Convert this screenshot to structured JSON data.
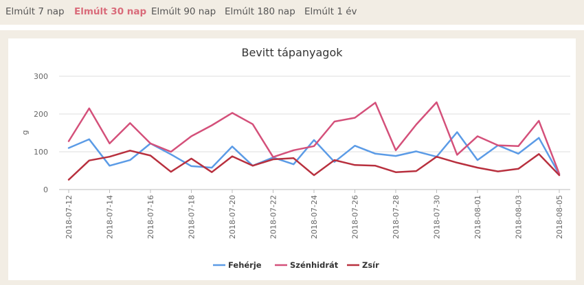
{
  "tabs": [
    {
      "label": "Elmúlt 7 nap",
      "active": false
    },
    {
      "label": "Elmúlt 30 nap",
      "active": true
    },
    {
      "label": "Elmúlt 90 nap",
      "active": false
    },
    {
      "label": "Elmúlt 180 nap",
      "active": false
    },
    {
      "label": "Elmúlt 1 év",
      "active": false
    }
  ],
  "colors": {
    "accent": "#d96b7a",
    "background": "#f2ede4"
  },
  "chart_data": {
    "type": "line",
    "title": "Bevitt tápanyagok",
    "ylabel": "g",
    "xlabel": "",
    "ylim": [
      0,
      300
    ],
    "yticks": [
      0,
      100,
      200,
      300
    ],
    "grid": true,
    "legend": "bottom",
    "x": [
      "2018-07-12",
      "2018-07-13",
      "2018-07-14",
      "2018-07-15",
      "2018-07-16",
      "2018-07-17",
      "2018-07-18",
      "2018-07-19",
      "2018-07-20",
      "2018-07-21",
      "2018-07-22",
      "2018-07-23",
      "2018-07-24",
      "2018-07-25",
      "2018-07-26",
      "2018-07-27",
      "2018-07-28",
      "2018-07-29",
      "2018-07-30",
      "2018-07-31",
      "2018-08-01",
      "2018-08-02",
      "2018-08-03",
      "2018-08-04",
      "2018-08-05"
    ],
    "xtick_labels": [
      "2018-07-12",
      "2018-07-14",
      "2018-07-16",
      "2018-07-18",
      "2018-07-20",
      "2018-07-22",
      "2018-07-24",
      "2018-07-26",
      "2018-07-28",
      "2018-07-30",
      "2018-08-01",
      "2018-08-03",
      "2018-08-05"
    ],
    "series": [
      {
        "name": "Fehérje",
        "color": "#5b9be6",
        "values": [
          110,
          133,
          63,
          78,
          122,
          93,
          62,
          58,
          114,
          63,
          85,
          67,
          131,
          73,
          116,
          95,
          89,
          101,
          87,
          152,
          78,
          117,
          95,
          137,
          40
        ]
      },
      {
        "name": "Szénhidrát",
        "color": "#d4507a",
        "values": [
          128,
          215,
          122,
          176,
          122,
          100,
          141,
          170,
          203,
          173,
          86,
          104,
          115,
          180,
          190,
          230,
          104,
          172,
          231,
          92,
          141,
          117,
          115,
          182,
          42
        ]
      },
      {
        "name": "Zsír",
        "color": "#b8303e",
        "values": [
          26,
          77,
          87,
          103,
          90,
          47,
          82,
          46,
          88,
          63,
          80,
          83,
          38,
          78,
          65,
          63,
          46,
          49,
          87,
          71,
          58,
          48,
          55,
          94,
          38
        ]
      }
    ]
  }
}
